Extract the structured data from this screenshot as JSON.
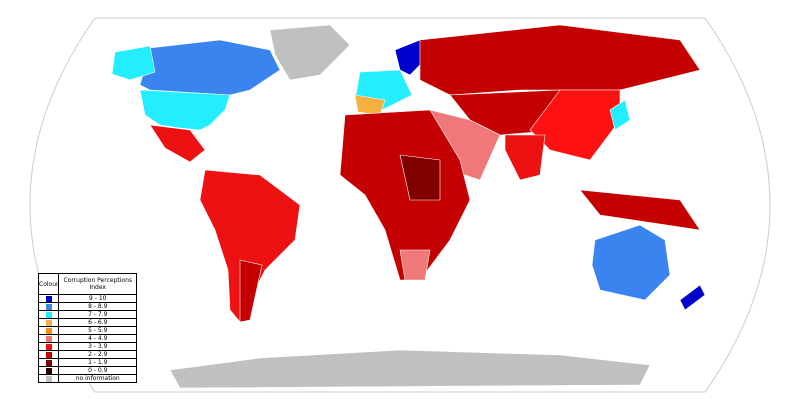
{
  "legend": {
    "header": {
      "colour": "Colour",
      "index": "Corruption Perceptions Index"
    },
    "rows": [
      {
        "color": "#0000cc",
        "label": "9 - 10"
      },
      {
        "color": "#3a84f0",
        "label": "8 - 8.9"
      },
      {
        "color": "#22eeff",
        "label": "7 - 7.9"
      },
      {
        "color": "#f5b040",
        "label": "6 - 6.9"
      },
      {
        "color": "#ff8a1a",
        "label": "5 - 5.9"
      },
      {
        "color": "#f07878",
        "label": "4 - 4.9"
      },
      {
        "color": "#ee1111",
        "label": "3 - 3.9"
      },
      {
        "color": "#c40000",
        "label": "2 - 2.9"
      },
      {
        "color": "#800000",
        "label": "1 - 1.9"
      },
      {
        "color": "#330000",
        "label": "0 - 0.9"
      },
      {
        "color": "#c0c0c0",
        "label": "no information"
      }
    ]
  }
}
